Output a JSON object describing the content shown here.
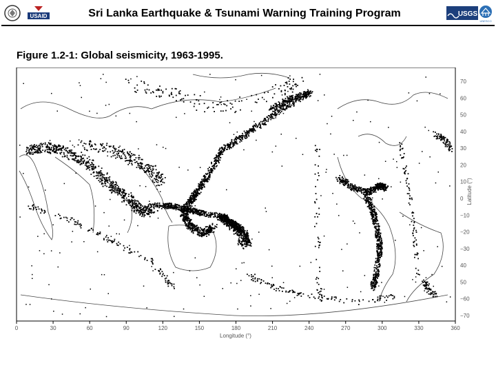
{
  "header": {
    "title": "Sri Lanka Earthquake & Tsunami Warning Training Program",
    "logo_usaid": "USAID",
    "logo_usgs": "USGS",
    "logo_unesco": "UNESCO"
  },
  "figure": {
    "caption": "Figure 1.2-1: Global seismicity, 1963-1995.",
    "x_label": "Longitude (°)",
    "y_label": "Latitude (°)",
    "x_ticks": [
      "0",
      "30",
      "60",
      "90",
      "120",
      "150",
      "180",
      "210",
      "240",
      "270",
      "300",
      "330",
      "360"
    ],
    "y_ticks": [
      "70",
      "60",
      "50",
      "40",
      "30",
      "20",
      "10",
      "0",
      "−10",
      "−20",
      "−30",
      "40",
      "50",
      "−60",
      "−70"
    ]
  },
  "colors": {
    "ink": "#000000",
    "background": "#ffffff"
  }
}
